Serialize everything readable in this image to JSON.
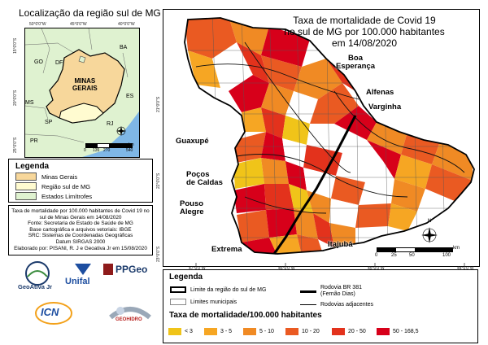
{
  "inset": {
    "title": "Localização da região sul de MG",
    "labels": {
      "ba": "BA",
      "go": "GO",
      "df": "DF",
      "mg": "MINAS\nGERAIS",
      "es": "ES",
      "ms": "MS",
      "sp": "SP",
      "rj": "RJ",
      "pr": "PR"
    },
    "top_coords": [
      "50°0'0\"W",
      "45°0'0\"W",
      "40°0'0\"W"
    ],
    "left_coords": [
      "15°0'0\"S",
      "20°0'0\"S",
      "25°0'0\"S"
    ],
    "scale": {
      "ticks": [
        "0",
        "135",
        "270",
        "540"
      ],
      "unit": "km"
    },
    "colors": {
      "mg": "#f7d79b",
      "south": "#fffbd0",
      "states": "#dff2d0",
      "ocean": "#7fb7e6"
    }
  },
  "legend_left": {
    "title": "Legenda",
    "items": [
      {
        "label": "Minas Gerais",
        "color": "#f7d79b"
      },
      {
        "label": "Região sul de MG",
        "color": "#fffbd0"
      },
      {
        "label": "Estados Limítrofes",
        "color": "#dff2d0"
      }
    ]
  },
  "meta_lines": [
    "Taxa de mortalidade por 100.000 habitantes de Covid 19 no",
    "sul de Minas Gerais em 14/08/2020",
    "Fonte: Secretaria de Estado de Saúde de MG",
    "Base cartográfica e arquivos vetoriais: IBGE",
    "SRC: Sistemas de Coordenadas Geográficas",
    "Datum SIRGAS 2000",
    "Elaborado por: PISANI, R. J e Geoativa Jr em 15/08/2020"
  ],
  "logos": {
    "geoativa": "GeoAtiva Jr",
    "unifal": "Unifal",
    "ppgeo": "PPGeo",
    "icn": "ICN",
    "geohidro": "GEOHIDRO"
  },
  "map": {
    "title_lines": [
      "Taxa de mortalidade de Covid 19",
      "no sul de MG por 100.000 habitantes",
      "em 14/08/2020"
    ],
    "cities": {
      "boa_esperanca": "Boa\nEsperança",
      "alfenas": "Alfenas",
      "varginha": "Varginha",
      "guaxupe": "Guaxupé",
      "pocos": "Poços\nde Caldas",
      "pouso": "Pouso\nAlegre",
      "extrema": "Extrema",
      "itajuba": "Itajubá"
    },
    "bottom_coords": [
      "47°0'0\"W",
      "46°0'0\"W",
      "45°0'0\"W",
      "44°0'0\"W"
    ],
    "left_coords": [
      "21°0'0\"S",
      "22°0'0\"S",
      "23°0'0\"S"
    ],
    "scale": {
      "ticks": [
        "0",
        "25",
        "50",
        "100"
      ],
      "unit": "km"
    },
    "north": "N"
  },
  "legend_bottom": {
    "title": "Legenda",
    "limit_region": "Limite da região do sul de MG",
    "municipal": "Limites municipais",
    "br381": "Rodovia BR 381\n(Fernão Dias)",
    "roads": "Rodovias adjacentes",
    "rate_title": "Taxa de mortalidade/100.000 habitantes",
    "classes": [
      {
        "label": "< 3",
        "color": "#f0c419"
      },
      {
        "label": "3 - 5",
        "color": "#f6a623"
      },
      {
        "label": "5 - 10",
        "color": "#f08a24"
      },
      {
        "label": "10 - 20",
        "color": "#ea5a22"
      },
      {
        "label": "20 - 50",
        "color": "#e3321c"
      },
      {
        "label": "50 - 168,5",
        "color": "#d7001a"
      }
    ]
  }
}
